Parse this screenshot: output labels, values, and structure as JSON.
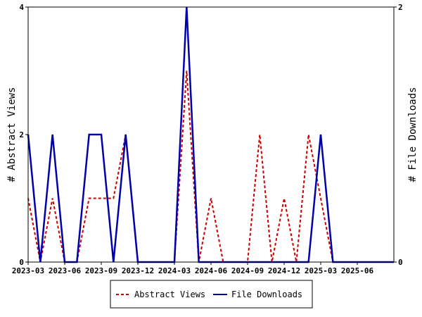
{
  "chart_data": {
    "type": "line",
    "ylabel_left": "# Abstract Views",
    "ylabel_right": "# File Downloads",
    "ylim_left": [
      0,
      4
    ],
    "ylim_right": [
      0,
      2
    ],
    "yticks_left": [
      "0",
      "2",
      "4"
    ],
    "yticks_right": [
      "0",
      "2"
    ],
    "xlim": [
      "2023-03",
      "2025-09"
    ],
    "xticks": [
      "2023-03",
      "2023-06",
      "2023-09",
      "2023-12",
      "2024-03",
      "2024-06",
      "2024-09",
      "2024-12",
      "2025-03",
      "2025-06"
    ],
    "grid": false,
    "legend": "bottom-center",
    "x": [
      "2023-03",
      "2023-04",
      "2023-05",
      "2023-06",
      "2023-07",
      "2023-08",
      "2023-09",
      "2023-10",
      "2023-11",
      "2023-12",
      "2024-01",
      "2024-02",
      "2024-03",
      "2024-04",
      "2024-05",
      "2024-06",
      "2024-07",
      "2024-08",
      "2024-09",
      "2024-10",
      "2024-11",
      "2024-12",
      "2025-01",
      "2025-02",
      "2025-03",
      "2025-04",
      "2025-05",
      "2025-06",
      "2025-07",
      "2025-08",
      "2025-09"
    ],
    "series": [
      {
        "name": "Abstract Views",
        "axis": "left",
        "color": "#cc0000",
        "dash": "dashed",
        "values": [
          1,
          0,
          1,
          0,
          0,
          1,
          1,
          1,
          2,
          0,
          0,
          0,
          0,
          3,
          0,
          1,
          0,
          0,
          0,
          2,
          0,
          1,
          0,
          2,
          1,
          0,
          0,
          0,
          0,
          0,
          0
        ]
      },
      {
        "name": "File Downloads",
        "axis": "right",
        "color": "#0000aa",
        "dash": "solid",
        "values": [
          1,
          0,
          1,
          0,
          0,
          1,
          1,
          0,
          1,
          0,
          0,
          0,
          0,
          2,
          0,
          0,
          0,
          0,
          0,
          0,
          0,
          0,
          0,
          0,
          1,
          0,
          0,
          0,
          0,
          0,
          0
        ]
      }
    ]
  }
}
